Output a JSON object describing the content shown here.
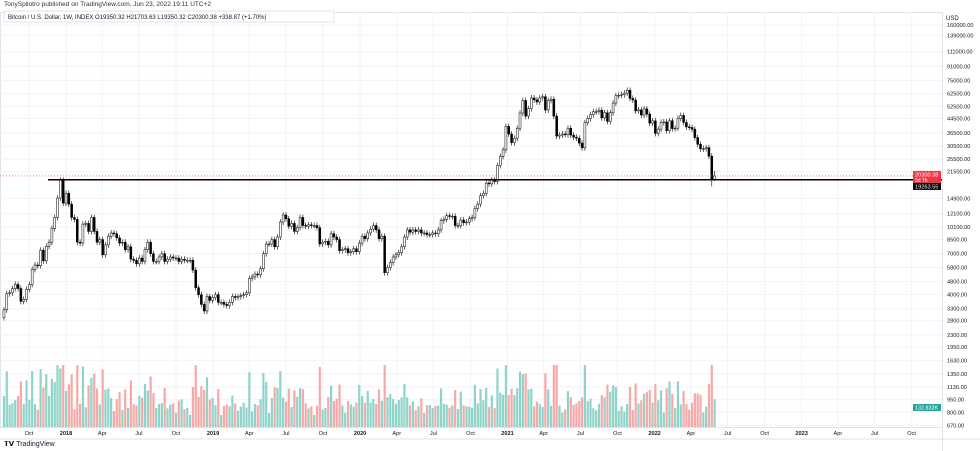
{
  "header": {
    "published": "TonySpilotro published on TradingView.com, Jun 23, 2022 19:11 UTC+2",
    "legend": "Bitcoin / U.S. Dollar, 1W, INDEX  O19350.32  H21703.63  L19350.32  C20300.38  +338.87 (+1.70%)"
  },
  "footer": {
    "brand": "TradingView",
    "logo_icon": "tradingview-logo-icon"
  },
  "colors": {
    "up": "#26a69a",
    "down": "#ef5350",
    "candle": "#000000",
    "last_price": "#f23645",
    "level_line": "#000000",
    "volume_up": "#8fd3c9",
    "volume_down": "#f7a9a7"
  },
  "chart_data": {
    "type": "candlestick",
    "symbol": "Bitcoin / U.S. Dollar",
    "interval": "1W",
    "yscale": "log",
    "ylabel": "USD",
    "ylim": [
      600,
      180000
    ],
    "grid": true,
    "start_week": "2017-07-31",
    "closes": [
      3250,
      4050,
      4100,
      4350,
      4600,
      4350,
      3650,
      3750,
      4300,
      4600,
      5650,
      6000,
      5950,
      7350,
      6350,
      7750,
      8200,
      9900,
      11500,
      15000,
      19100,
      14000,
      16000,
      13800,
      11500,
      11200,
      8200,
      8100,
      10500,
      10600,
      9500,
      11500,
      9500,
      8200,
      8500,
      6900,
      7900,
      8900,
      9300,
      9200,
      8700,
      8100,
      8200,
      7400,
      7700,
      6500,
      6400,
      6100,
      6600,
      6300,
      7400,
      8200,
      7000,
      6300,
      6300,
      6700,
      7000,
      6300,
      6500,
      6700,
      6600,
      6600,
      6300,
      6500,
      6400,
      6400,
      6400,
      5600,
      4400,
      4000,
      3500,
      3200,
      3900,
      3700,
      3850,
      4000,
      3600,
      3600,
      3500,
      3450,
      3600,
      3900,
      3850,
      3900,
      3950,
      4000,
      4100,
      5000,
      5100,
      5300,
      5250,
      5700,
      7000,
      8000,
      8000,
      8500,
      7700,
      8800,
      10800,
      11900,
      11300,
      10200,
      10600,
      9500,
      10000,
      11500,
      10300,
      10200,
      10400,
      10300,
      10300,
      10000,
      8000,
      8200,
      8300,
      7900,
      9200,
      8800,
      8500,
      7300,
      7400,
      7500,
      7100,
      7200,
      7500,
      7200,
      8100,
      8900,
      8600,
      9300,
      9800,
      10300,
      9700,
      8600,
      8900,
      5400,
      5800,
      6200,
      6700,
      6900,
      7100,
      7700,
      8800,
      9700,
      9400,
      9700,
      9500,
      9700,
      9300,
      9300,
      9100,
      9100,
      9300,
      9200,
      9700,
      11000,
      11200,
      11800,
      11650,
      11700,
      10300,
      10300,
      11100,
      10700,
      10800,
      11300,
      11500,
      13000,
      13800,
      15500,
      16000,
      18400,
      18200,
      19200,
      18800,
      23400,
      26500,
      29000,
      40000,
      36000,
      32000,
      34000,
      39000,
      48000,
      57000,
      46000,
      51000,
      59000,
      57500,
      55800,
      59000,
      60000,
      50000,
      57000,
      58000,
      46000,
      35000,
      35500,
      36000,
      35700,
      39000,
      35500,
      34500,
      34000,
      31800,
      29800,
      42000,
      44600,
      47000,
      48800,
      49000,
      49900,
      44900,
      48200,
      42800,
      48200,
      55000,
      60800,
      61200,
      61800,
      63000,
      65500,
      58600,
      57300,
      49400,
      50100,
      46700,
      50800,
      47300,
      41800,
      43100,
      36300,
      38500,
      42200,
      42500,
      37700,
      43200,
      38800,
      39000,
      44500,
      46400,
      42200,
      39700,
      39400,
      38500,
      34300,
      31300,
      29400,
      29500,
      29900,
      26600,
      19350,
      20300.38
    ],
    "y_ticks": [
      "160000.00",
      "139000.00",
      "111000.00",
      "91000.00",
      "75000.00",
      "62500.00",
      "52500.00",
      "44500.00",
      "36500.00",
      "30500.00",
      "25500.00",
      "21500.00",
      "14900.00",
      "12100.00",
      "10100.00",
      "8500.00",
      "7000.00",
      "5800.00",
      "4800.00",
      "4000.00",
      "3300.00",
      "2800.00",
      "2300.00",
      "1950.00",
      "1630.00",
      "1350.00",
      "1130.00",
      "950.00",
      "800.00",
      "670.00"
    ],
    "x_ticks": [
      {
        "label": "Oct",
        "date": "2017-10-01"
      },
      {
        "label": "2018",
        "date": "2018-01-01",
        "bold": true
      },
      {
        "label": "Apr",
        "date": "2018-04-01"
      },
      {
        "label": "Jul",
        "date": "2018-07-01"
      },
      {
        "label": "Oct",
        "date": "2018-10-01"
      },
      {
        "label": "2019",
        "date": "2019-01-01",
        "bold": true
      },
      {
        "label": "Apr",
        "date": "2019-04-01"
      },
      {
        "label": "Jul",
        "date": "2019-07-01"
      },
      {
        "label": "Oct",
        "date": "2019-10-01"
      },
      {
        "label": "2020",
        "date": "2020-01-01",
        "bold": true
      },
      {
        "label": "Apr",
        "date": "2020-04-01"
      },
      {
        "label": "Jul",
        "date": "2020-07-01"
      },
      {
        "label": "Oct",
        "date": "2020-10-01"
      },
      {
        "label": "2021",
        "date": "2021-01-01",
        "bold": true
      },
      {
        "label": "Apr",
        "date": "2021-04-01"
      },
      {
        "label": "Jul",
        "date": "2021-07-01"
      },
      {
        "label": "Oct",
        "date": "2021-10-01"
      },
      {
        "label": "2022",
        "date": "2022-01-01",
        "bold": true
      },
      {
        "label": "Apr",
        "date": "2022-04-01"
      },
      {
        "label": "Jul",
        "date": "2022-07-01"
      },
      {
        "label": "Oct",
        "date": "2022-10-01"
      },
      {
        "label": "2023",
        "date": "2023-01-01",
        "bold": true
      },
      {
        "label": "Apr",
        "date": "2023-04-01"
      },
      {
        "label": "Jul",
        "date": "2023-07-01"
      },
      {
        "label": "Oct",
        "date": "2023-10-01"
      }
    ],
    "last_price": {
      "value": 20300.38,
      "label": "20300.38",
      "countdown": "3d 7h"
    },
    "horizontal_level": {
      "value": 19263.55,
      "label": "19263.55"
    },
    "volume_label": "132.832K",
    "last_week": {
      "open": 19350.32,
      "high": 21703.63,
      "low": 19350.32,
      "close": 20300.38
    }
  }
}
